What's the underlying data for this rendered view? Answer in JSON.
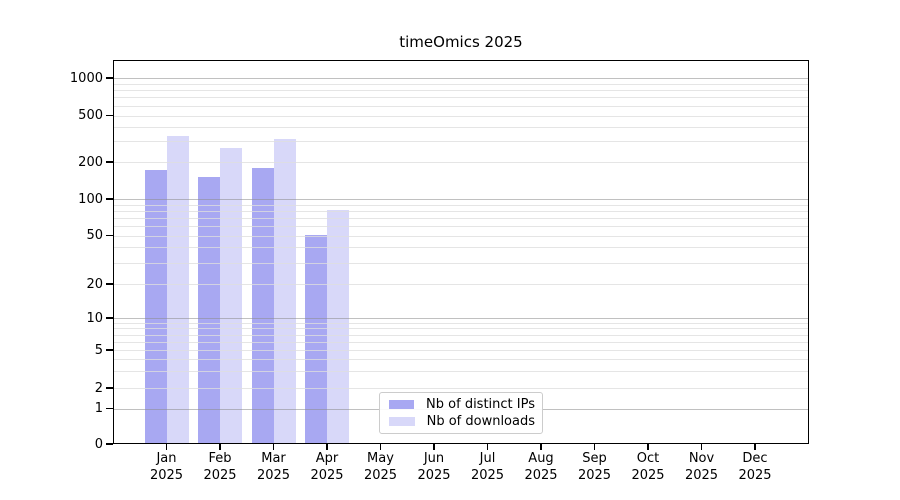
{
  "title": "timeOmics 2025",
  "chart_data": {
    "type": "bar",
    "title": "timeOmics 2025",
    "categories": [
      "Jan 2025",
      "Feb 2025",
      "Mar 2025",
      "Apr 2025",
      "May 2025",
      "Jun 2025",
      "Jul 2025",
      "Aug 2025",
      "Sep 2025",
      "Oct 2025",
      "Nov 2025",
      "Dec 2025"
    ],
    "series": [
      {
        "name": "Nb of distinct IPs",
        "color": "#a8a8f2",
        "values": [
          172,
          152,
          180,
          51,
          0,
          0,
          0,
          0,
          0,
          0,
          0,
          0
        ]
      },
      {
        "name": "Nb of downloads",
        "color": "#d8d8f9",
        "values": [
          331,
          264,
          313,
          82,
          0,
          0,
          0,
          0,
          0,
          0,
          0,
          0
        ]
      }
    ],
    "yticks": [
      0,
      1,
      2,
      5,
      10,
      20,
      50,
      100,
      200,
      500,
      1000
    ],
    "y_scale": "log-like with zero baseline",
    "ylim": [
      0,
      1400
    ],
    "xlabel": "",
    "ylabel": "",
    "grid": true,
    "grid_over_bars": true,
    "legend": {
      "position": "inset-bottom-center",
      "entries": [
        "Nb of distinct IPs",
        "Nb of downloads"
      ]
    },
    "colors": {
      "axis": "#000000",
      "major_grid": "#c0c0c0",
      "minor_grid": "#e6e6e6",
      "background": "#ffffff"
    }
  }
}
